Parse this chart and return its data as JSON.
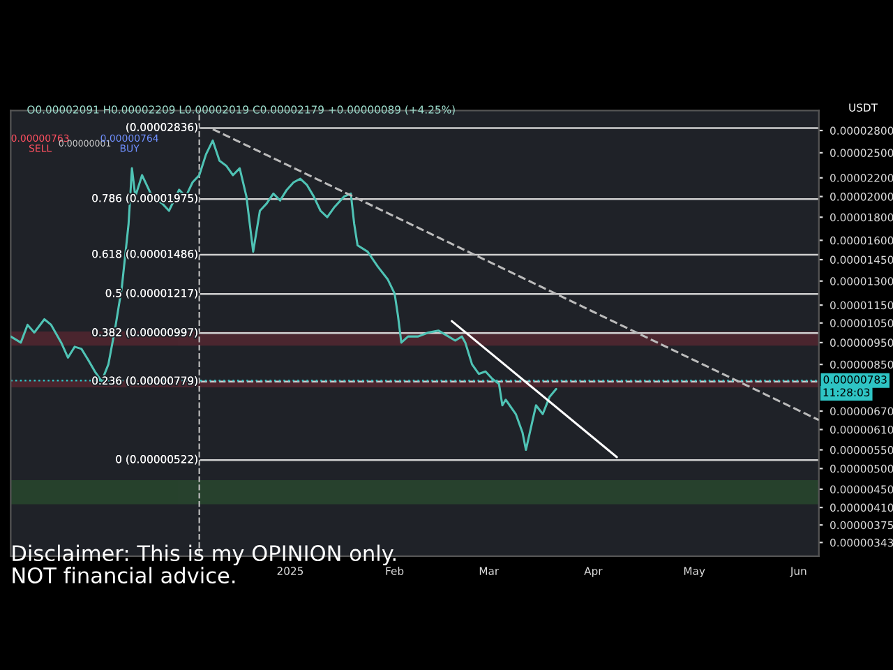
{
  "chart_data": {
    "type": "line",
    "annotations": [
      "O0.00002091 H0.00002209 L0.00002019 C0.00002179 +0.00000089 (+4.25%)",
      "0.00000763\nSELL",
      "0.00000001",
      "0.00000764\nBUY",
      "USDT",
      "11:28:03",
      "Disclaimer: This is my OPINION only.\nNOT financial advice."
    ],
    "series": [
      {
        "color": "#4fc3b5",
        "x": [
          "2024-10-10",
          "2024-10-13",
          "2024-10-15",
          "2024-10-17",
          "2024-10-20",
          "2024-10-22",
          "2024-10-25",
          "2024-10-27",
          "2024-10-29",
          "2024-10-31",
          "2024-11-02",
          "2024-11-04",
          "2024-11-06",
          "2024-11-08",
          "2024-11-10",
          "2024-11-12",
          "2024-11-14",
          "2024-11-15",
          "2024-11-16",
          "2024-11-18",
          "2024-11-21",
          "2024-11-24",
          "2024-11-26",
          "2024-11-29",
          "2024-12-01",
          "2024-12-03",
          "2024-12-05",
          "2024-12-07",
          "2024-12-09",
          "2024-12-11",
          "2024-12-13",
          "2024-12-15",
          "2024-12-17",
          "2024-12-19",
          "2024-12-21",
          "2024-12-23",
          "2024-12-25",
          "2024-12-27",
          "2024-12-29",
          "2024-12-31",
          "2025-01-02",
          "2025-01-04",
          "2025-01-06",
          "2025-01-08",
          "2025-01-10",
          "2025-01-12",
          "2025-01-14",
          "2025-01-17",
          "2025-01-19",
          "2025-01-20",
          "2025-01-21",
          "2025-01-24",
          "2025-01-27",
          "2025-01-30",
          "2025-02-01",
          "2025-02-02",
          "2025-02-03",
          "2025-02-05",
          "2025-02-08",
          "2025-02-11",
          "2025-02-14",
          "2025-02-17",
          "2025-02-19",
          "2025-02-21",
          "2025-02-22",
          "2025-02-24",
          "2025-02-26",
          "2025-02-28",
          "2025-03-02",
          "2025-03-04",
          "2025-03-05",
          "2025-03-06",
          "2025-03-09",
          "2025-03-11",
          "2025-03-12",
          "2025-03-14",
          "2025-03-15",
          "2025-03-17",
          "2025-03-19",
          "2025-03-21"
        ],
        "values": [
          9.8e-06,
          9.5e-06,
          1.04e-05,
          1e-05,
          1.07e-05,
          1.04e-05,
          9.5e-06,
          8.8e-06,
          9.3e-06,
          9.2e-06,
          8.7e-06,
          8.2e-06,
          7.8e-06,
          8.5e-06,
          1.02e-05,
          1.26e-05,
          1.74e-05,
          2.31e-05,
          2e-05,
          2.23e-05,
          2e-05,
          1.93e-05,
          1.86e-05,
          2.07e-05,
          2e-05,
          2.15e-05,
          2.23e-05,
          2.48e-05,
          2.66e-05,
          2.4e-05,
          2.34e-05,
          2.23e-05,
          2.31e-05,
          2e-05,
          1.51e-05,
          1.86e-05,
          1.93e-05,
          2.03e-05,
          1.96e-05,
          2.07e-05,
          2.15e-05,
          2.19e-05,
          2.12e-05,
          2e-05,
          1.86e-05,
          1.8e-05,
          1.89e-05,
          2e-05,
          2.03e-05,
          1.74e-05,
          1.56e-05,
          1.51e-05,
          1.4e-05,
          1.31e-05,
          1.22e-05,
          1.09e-05,
          9.5e-06,
          9.8e-06,
          9.8e-06,
          1e-05,
          1.01e-05,
          9.8e-06,
          9.6e-06,
          9.8e-06,
          9.5e-06,
          8.5e-06,
          8.1e-06,
          8.2e-06,
          7.9e-06,
          7.7e-06,
          6.9e-06,
          7.1e-06,
          6.6e-06,
          6e-06,
          5.5e-06,
          6.4e-06,
          6.9e-06,
          6.6e-06,
          7.2e-06,
          7.5e-06
        ]
      },
      {
        "type": "line",
        "color": "#bbbbbb",
        "line_style": "dashed",
        "x": [
          "2024-12-09",
          "2025-06-07"
        ],
        "values": [
          2.82e-05,
          6.4e-06
        ]
      },
      {
        "type": "line",
        "color": "#ffffff",
        "line_style": "solid",
        "x": [
          "2025-02-18",
          "2025-04-08"
        ],
        "values": [
          1.06e-05,
          5.3e-06
        ]
      }
    ],
    "ref_lines": [
      {
        "axis": "y",
        "value": 2.836e-05,
        "label": "(0.00002836)",
        "color": "#d0d0d0"
      },
      {
        "axis": "y",
        "value": 1.975e-05,
        "label": "0.786 (0.00001975)",
        "color": "#d0d0d0"
      },
      {
        "axis": "y",
        "value": 1.486e-05,
        "label": "0.618 (0.00001486)",
        "color": "#d0d0d0"
      },
      {
        "axis": "y",
        "value": 1.217e-05,
        "label": "0.5 (0.00001217)",
        "color": "#d0d0d0"
      },
      {
        "axis": "y",
        "value": 9.97e-06,
        "label": "0.382 (0.00000997)",
        "color": "#d0d0d0"
      },
      {
        "axis": "y",
        "value": 7.79e-06,
        "label": "0.236 (0.00000779)",
        "color": "#d0d0d0",
        "line_style": "dashed"
      },
      {
        "axis": "y",
        "value": 5.22e-06,
        "label": "0 (0.00000522)",
        "color": "#d0d0d0"
      },
      {
        "axis": "y",
        "value": 7.83e-06,
        "label": "0.00000783",
        "color": "#2ec4c4",
        "line_style": "dotted"
      },
      {
        "axis": "x",
        "value": "2024-12-05",
        "color": "#bbbbbb",
        "line_style": "dashed"
      }
    ],
    "bands": [
      {
        "axis": "y",
        "from": 9.4e-06,
        "to": 1e-05,
        "color": "#b03040"
      },
      {
        "axis": "y",
        "from": 7.6e-06,
        "to": 7.8e-06,
        "color": "#b03040"
      },
      {
        "axis": "y",
        "from": 4.19e-06,
        "to": 4.69e-06,
        "color": "#3a8a3a"
      }
    ],
    "log": "y",
    "xlim": [
      "2024-10-10",
      "2025-06-07"
    ],
    "xticks": [
      {
        "value": "2025-01-01",
        "label": "2025"
      },
      {
        "value": "2025-02-01",
        "label": "Feb"
      },
      {
        "value": "2025-03-01",
        "label": "Mar"
      },
      {
        "value": "2025-04-01",
        "label": "Apr"
      },
      {
        "value": "2025-05-01",
        "label": "May"
      },
      {
        "value": "2025-06-01",
        "label": "Jun"
      }
    ],
    "ylim": [
      3.2e-06,
      3.1e-05
    ],
    "yticks": [
      {
        "value": 2.8e-05,
        "label": "0.00002800"
      },
      {
        "value": 2.5e-05,
        "label": "0.00002500"
      },
      {
        "value": 2.2e-05,
        "label": "0.00002200"
      },
      {
        "value": 2e-05,
        "label": "0.00002000"
      },
      {
        "value": 1.8e-05,
        "label": "0.00001800"
      },
      {
        "value": 1.6e-05,
        "label": "0.00001600"
      },
      {
        "value": 1.45e-05,
        "label": "0.00001450"
      },
      {
        "value": 1.3e-05,
        "label": "0.00001300"
      },
      {
        "value": 1.15e-05,
        "label": "0.00001150"
      },
      {
        "value": 1.05e-05,
        "label": "0.00001050"
      },
      {
        "value": 9.5e-06,
        "label": "0.00000950"
      },
      {
        "value": 8.5e-06,
        "label": "0.00000850"
      },
      {
        "value": 6.7e-06,
        "label": "0.00000670"
      },
      {
        "value": 6.1e-06,
        "label": "0.00000610"
      },
      {
        "value": 5.5e-06,
        "label": "0.00000550"
      },
      {
        "value": 5e-06,
        "label": "0.00000500"
      },
      {
        "value": 4.5e-06,
        "label": "0.00000450"
      },
      {
        "value": 4.1e-06,
        "label": "0.00000410"
      },
      {
        "value": 3.75e-06,
        "label": "0.00000375"
      },
      {
        "value": 3.43e-06,
        "label": "0.00000343"
      }
    ],
    "grid": false,
    "legend": false
  }
}
